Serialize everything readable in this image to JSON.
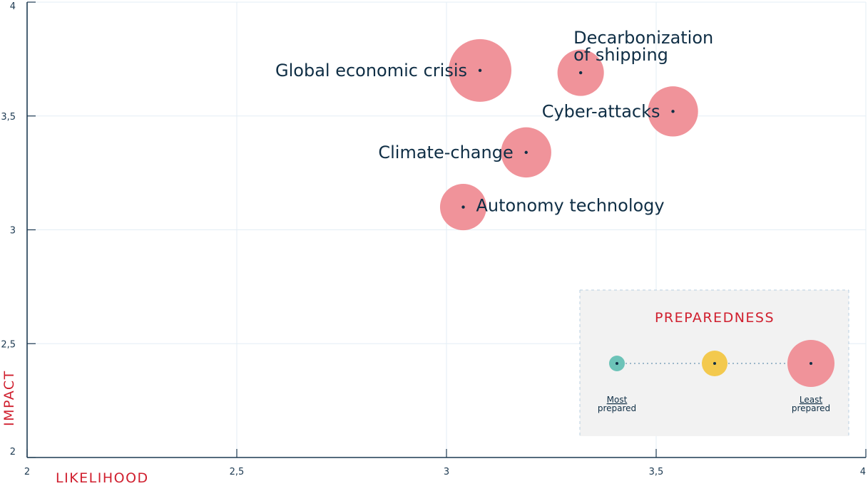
{
  "chart_data": {
    "type": "scatter",
    "xlabel": "LIKELIHOOD",
    "ylabel": "IMPACT",
    "xlim": [
      2,
      4
    ],
    "ylim": [
      2,
      4
    ],
    "xticks": [
      "2",
      "2,5",
      "3",
      "3,5",
      "4"
    ],
    "yticks": [
      "2",
      "2,5",
      "3",
      "3,5",
      "4"
    ],
    "grid": true,
    "points": [
      {
        "label": "Global economic crisis",
        "x": 3.08,
        "y": 3.7,
        "preparedness": 1.0,
        "label_side": "left"
      },
      {
        "label": "Decarbonization of shipping",
        "lines": [
          "Decarbonization",
          "of shipping"
        ],
        "x": 3.32,
        "y": 3.69,
        "preparedness": 0.74,
        "label_side": "above"
      },
      {
        "label": "Cyber-attacks",
        "x": 3.54,
        "y": 3.52,
        "preparedness": 0.8,
        "label_side": "left"
      },
      {
        "label": "Climate-change",
        "x": 3.19,
        "y": 3.34,
        "preparedness": 0.8,
        "label_side": "left"
      },
      {
        "label": "Autonomy technology",
        "x": 3.04,
        "y": 3.1,
        "preparedness": 0.74,
        "label_side": "right"
      }
    ],
    "legend": {
      "title": "PREPAREDNESS",
      "placement": "bottom-right",
      "items": [
        {
          "line1": "Most",
          "line2": "prepared",
          "color": "#6cc3b8",
          "level": "most"
        },
        {
          "line1": "",
          "line2": "",
          "color": "#f3c94e",
          "level": "mid"
        },
        {
          "line1": "Least",
          "line2": "prepared",
          "color": "#f0939a",
          "level": "least"
        }
      ]
    },
    "colors": {
      "bubble": "#f0939a",
      "dot": "#0f2e45",
      "grid": "#e3eef5",
      "axis": "#1d3a52",
      "title_red": "#d01f2e",
      "legend_bg": "#f2f2f2"
    }
  }
}
